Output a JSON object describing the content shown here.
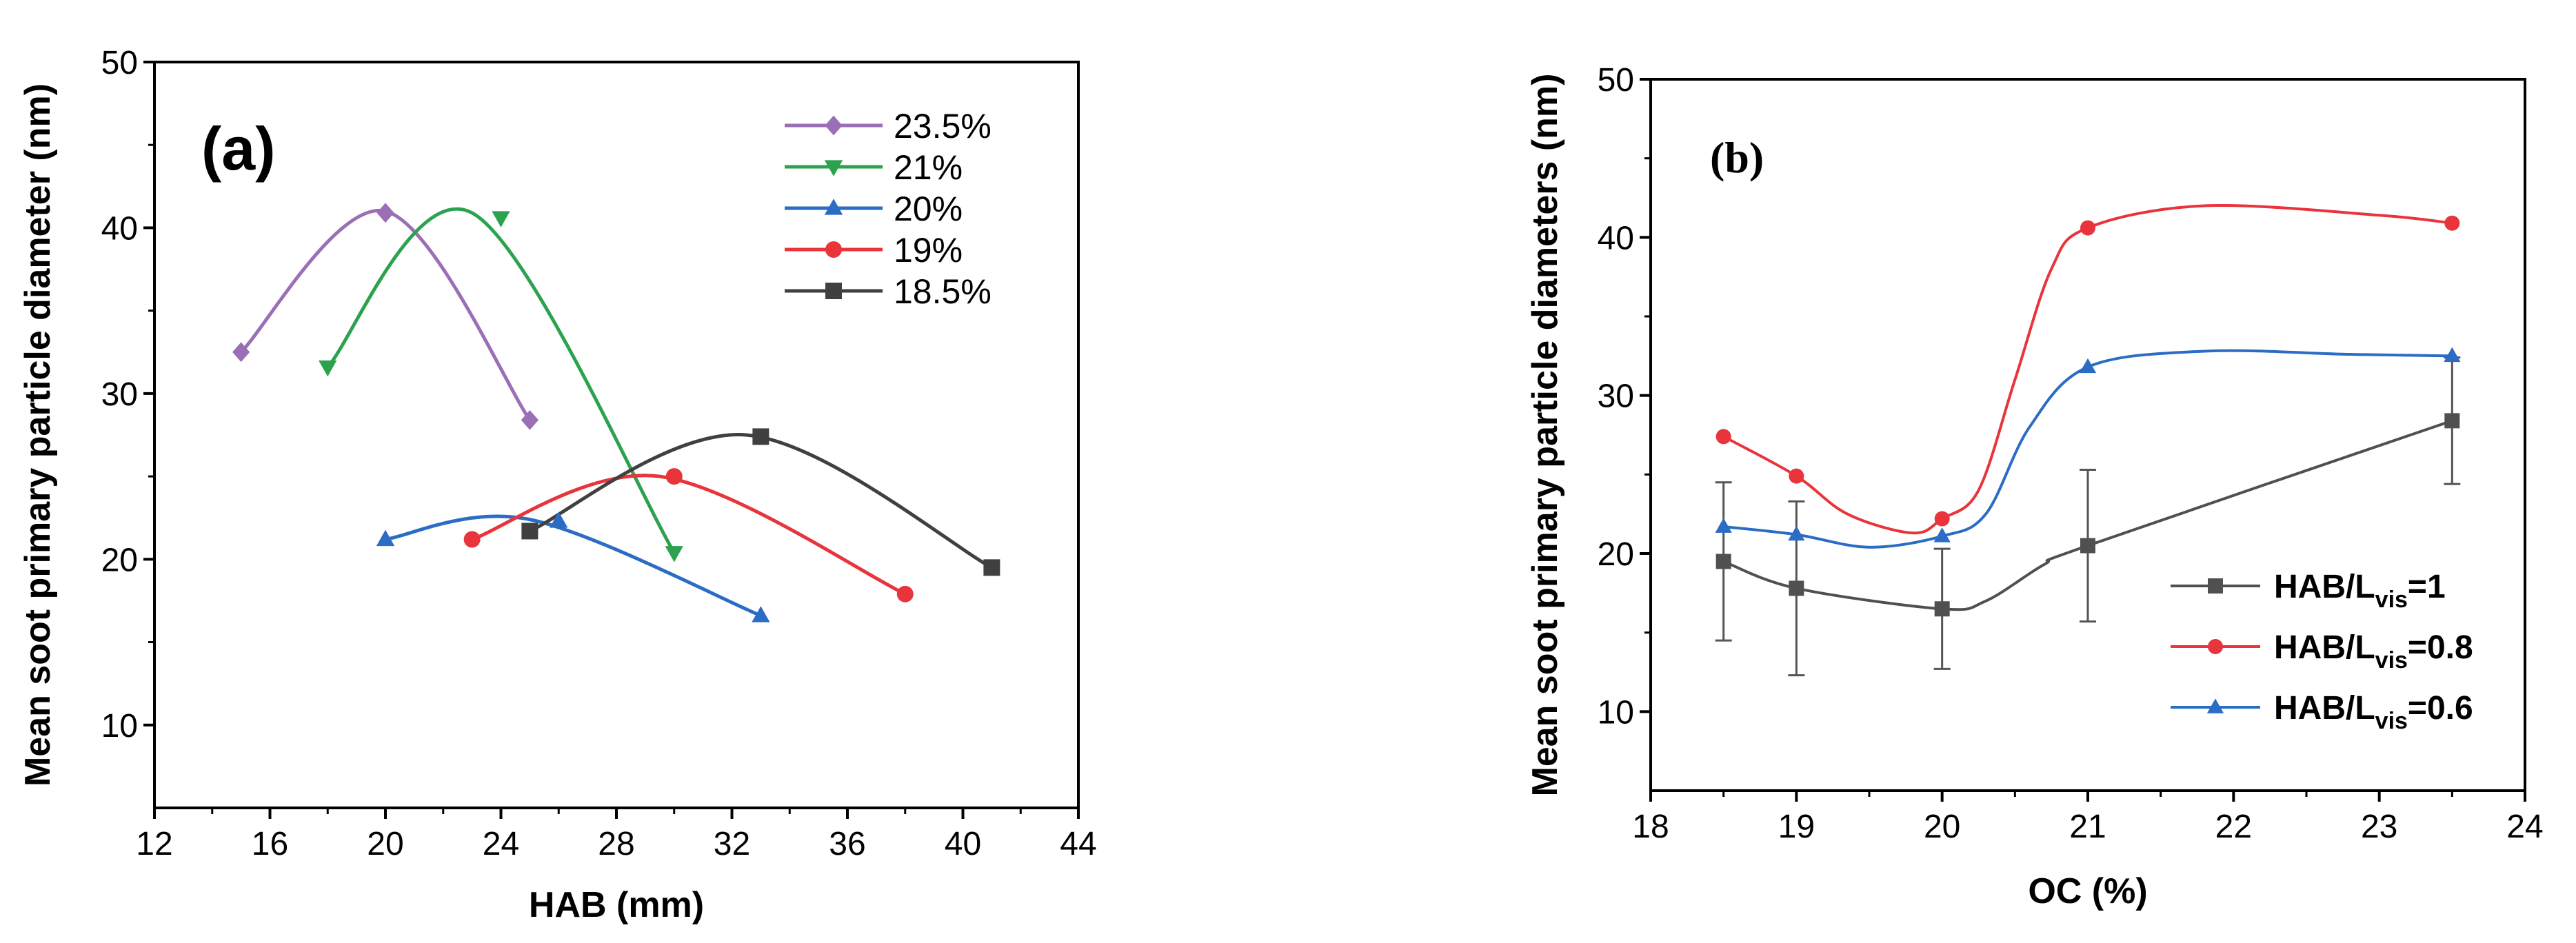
{
  "chart_data": [
    {
      "type": "line",
      "panel_label": "(a)",
      "xlabel": "HAB (mm)",
      "ylabel": "Mean soot primary particle diameter (nm)",
      "xlim": [
        12,
        44
      ],
      "ylim": [
        5,
        50
      ],
      "xticks": [
        12,
        16,
        20,
        24,
        28,
        32,
        36,
        40,
        44
      ],
      "yticks": [
        10,
        20,
        30,
        40,
        50
      ],
      "legend_position": "top-right",
      "series": [
        {
          "name": "23.5%",
          "color": "#9b6fb5",
          "marker": "diamond",
          "x": [
            15,
            20,
            25
          ],
          "y": [
            32.5,
            40.9,
            28.4
          ],
          "peak": [
            20,
            41
          ]
        },
        {
          "name": "21%",
          "color": "#2ca24f",
          "marker": "triangle-down",
          "x": [
            18,
            24,
            30
          ],
          "y": [
            31.6,
            40.6,
            20.4
          ],
          "peak": [
            23,
            40.9
          ]
        },
        {
          "name": "20%",
          "color": "#2b6cc4",
          "marker": "triangle-up",
          "x": [
            20,
            26,
            33
          ],
          "y": [
            21.2,
            22.3,
            16.6
          ],
          "peak": [
            25,
            22.4
          ]
        },
        {
          "name": "19%",
          "color": "#e8343a",
          "marker": "circle",
          "x": [
            23,
            30,
            38
          ],
          "y": [
            21.2,
            25,
            17.9
          ],
          "peak": [
            29.5,
            25
          ]
        },
        {
          "name": "18.5%",
          "color": "#404040",
          "marker": "square",
          "x": [
            25,
            33,
            41
          ],
          "y": [
            21.7,
            27.4,
            19.5
          ],
          "peak": [
            32.5,
            27.5
          ]
        }
      ]
    },
    {
      "type": "line",
      "panel_label": "(b)",
      "xlabel": "OC (%)",
      "ylabel": "Mean soot primary particle diameters (nm)",
      "xlim": [
        18,
        24
      ],
      "ylim": [
        5,
        50
      ],
      "xticks": [
        18,
        19,
        20,
        21,
        22,
        23,
        24
      ],
      "yticks": [
        10,
        20,
        30,
        40,
        50
      ],
      "legend_position": "bottom-right",
      "series": [
        {
          "name": "HAB/L",
          "subscript": "vis",
          "suffix": "=1",
          "color": "#505050",
          "marker": "square",
          "x": [
            18.5,
            19,
            20,
            21,
            23.5
          ],
          "y": [
            19.5,
            17.8,
            16.5,
            20.5,
            28.4
          ],
          "error": [
            5,
            5.5,
            3.8,
            4.8,
            4
          ],
          "shape": [
            [
              20.3,
              17
            ],
            [
              20.7,
              19.3
            ]
          ]
        },
        {
          "name": "HAB/L",
          "subscript": "vis",
          "suffix": "=0.8",
          "color": "#e8343a",
          "marker": "circle",
          "x": [
            18.5,
            19,
            20,
            21,
            23.5
          ],
          "y": [
            27.4,
            24.9,
            22.2,
            40.6,
            40.9
          ],
          "shape": [
            [
              19.35,
              22.5
            ],
            [
              19.8,
              21.3
            ],
            [
              20.25,
              24
            ],
            [
              20.5,
              31
            ],
            [
              20.75,
              38
            ],
            [
              21.8,
              42
            ],
            [
              23,
              41.4
            ]
          ]
        },
        {
          "name": "HAB/L",
          "subscript": "vis",
          "suffix": "=0.6",
          "color": "#2b6cc4",
          "marker": "triangle-up",
          "x": [
            18.5,
            19,
            20,
            21,
            23.5
          ],
          "y": [
            21.7,
            21.2,
            21.1,
            31.8,
            32.5
          ],
          "shape": [
            [
              19.5,
              20.4
            ],
            [
              20.3,
              22.5
            ],
            [
              20.6,
              28
            ],
            [
              21.8,
              32.8
            ],
            [
              22.8,
              32.6
            ]
          ]
        }
      ]
    }
  ]
}
